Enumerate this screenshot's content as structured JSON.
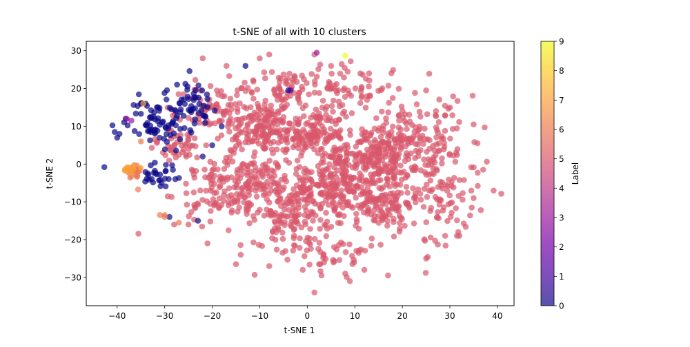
{
  "chart_data": {
    "type": "scatter",
    "title": "t-SNE of all with 10 clusters",
    "xlabel": "t-SNE 1",
    "ylabel": "t-SNE 2",
    "xlim": [
      -46.5,
      43.5
    ],
    "ylim": [
      -37.5,
      32.5
    ],
    "xticks": [
      -40,
      -30,
      -20,
      -10,
      0,
      10,
      20,
      30,
      40
    ],
    "yticks": [
      -30,
      -20,
      -10,
      0,
      10,
      20,
      30
    ],
    "grid": false,
    "legend": "none",
    "colorbar": {
      "label": "Label",
      "min": 0,
      "max": 9,
      "ticks": [
        0,
        1,
        2,
        3,
        4,
        5,
        6,
        7,
        8,
        9
      ],
      "colormap": "plasma",
      "stops": [
        "#0d0887",
        "#46039f",
        "#7201a8",
        "#9c179e",
        "#bd3786",
        "#d8576b",
        "#ed7953",
        "#fb9f3a",
        "#fdca26",
        "#f0f921"
      ]
    },
    "series": [
      {
        "label": 5,
        "color": "#d8576b",
        "clusters": [
          {
            "center": [
              -10,
              10
            ],
            "sd": [
              3.5,
              3.5
            ],
            "n": 130
          },
          {
            "center": [
              1,
              8
            ],
            "sd": [
              3.5,
              3.0
            ],
            "n": 120
          },
          {
            "center": [
              15,
              2
            ],
            "sd": [
              4.0,
              4.0
            ],
            "n": 200
          },
          {
            "center": [
              5,
              -7
            ],
            "sd": [
              4.0,
              3.5
            ],
            "n": 130
          },
          {
            "center": [
              -12,
              -6
            ],
            "sd": [
              4.0,
              4.0
            ],
            "n": 130
          },
          {
            "center": [
              -4,
              -14
            ],
            "sd": [
              3.5,
              3.5
            ],
            "n": 90
          },
          {
            "center": [
              15,
              -10
            ],
            "sd": [
              3.5,
              3.5
            ],
            "n": 100
          },
          {
            "center": [
              -5,
              20
            ],
            "sd": [
              5.0,
              2.5
            ],
            "n": 70
          },
          {
            "center": [
              -20,
              14
            ],
            "sd": [
              3.0,
              4.0
            ],
            "n": 60
          },
          {
            "center": [
              -27,
              5
            ],
            "sd": [
              3.5,
              2.0
            ],
            "n": 40
          },
          {
            "center": [
              -20,
              -8
            ],
            "sd": [
              3.5,
              4.0
            ],
            "n": 50
          },
          {
            "center": [
              25,
              8
            ],
            "sd": [
              4.0,
              5.0
            ],
            "n": 70
          },
          {
            "center": [
              28,
              -10
            ],
            "sd": [
              4.0,
              5.0
            ],
            "n": 60
          },
          {
            "center": [
              5,
              -23
            ],
            "sd": [
              5.0,
              3.0
            ],
            "n": 50
          },
          {
            "center": [
              8,
              20
            ],
            "sd": [
              5.0,
              3.0
            ],
            "n": 50
          },
          {
            "center": [
              0,
              0
            ],
            "sd": [
              12.0,
              10.0
            ],
            "n": 220
          },
          {
            "center": [
              20,
              0
            ],
            "sd": [
              9.0,
              10.0
            ],
            "n": 140
          }
        ],
        "points": [
          [
            -22,
            28
          ],
          [
            -17,
            26
          ],
          [
            -10,
            28
          ],
          [
            -8,
            29
          ],
          [
            1.5,
            29
          ],
          [
            5,
            26
          ],
          [
            13,
            24
          ],
          [
            25,
            19.5
          ],
          [
            30,
            15
          ],
          [
            35,
            10.5
          ],
          [
            37,
            -1.5
          ],
          [
            35,
            -9
          ],
          [
            32,
            -19
          ],
          [
            29,
            -19
          ],
          [
            25,
            -25
          ],
          [
            17,
            -29.5
          ],
          [
            12,
            -28
          ],
          [
            8,
            -29
          ],
          [
            1.5,
            -34
          ],
          [
            3,
            -29.5
          ],
          [
            -8,
            -27
          ],
          [
            -15,
            -26.5
          ],
          [
            -21,
            -21
          ],
          [
            -25,
            -16
          ],
          [
            -28,
            -16
          ],
          [
            -14,
            -24
          ]
        ]
      },
      {
        "label": 0,
        "color": "#0d0887",
        "clusters": [
          {
            "center": [
              -32,
              11
            ],
            "sd": [
              3.0,
              3.0
            ],
            "n": 65
          },
          {
            "center": [
              -25,
              16
            ],
            "sd": [
              2.5,
              3.0
            ],
            "n": 55
          },
          {
            "center": [
              -31,
              -3
            ],
            "sd": [
              2.5,
              2.5
            ],
            "n": 30
          }
        ],
        "points": [
          [
            -42.7,
            -0.8
          ],
          [
            -40.5,
            8.5
          ],
          [
            -40,
            7
          ],
          [
            -39.5,
            8
          ],
          [
            -29,
            -14
          ],
          [
            -23,
            -15
          ],
          [
            -13,
            26
          ],
          [
            -4,
            19.5
          ],
          [
            -35,
            16
          ],
          [
            -34,
            16
          ],
          [
            -22,
            2
          ],
          [
            -20,
            5
          ],
          [
            -18,
            10
          ]
        ]
      },
      {
        "label": 6,
        "color": "#ed7953",
        "clusters": [
          {
            "center": [
              -36.5,
              -2.5
            ],
            "sd": [
              0.7,
              1.6
            ],
            "n": 22
          }
        ],
        "points": [
          [
            -31,
            -13.5
          ],
          [
            -30,
            -13.5
          ],
          [
            -27,
            -15.5
          ],
          [
            -35,
            6
          ],
          [
            -30,
            -14
          ]
        ]
      },
      {
        "label": 7,
        "color": "#fb9f3a",
        "clusters": [
          {
            "center": [
              -37,
              -1.2
            ],
            "sd": [
              0.8,
              0.6
            ],
            "n": 12
          }
        ],
        "points": [
          [
            -34.5,
            16
          ]
        ]
      },
      {
        "label": 3,
        "color": "#9c179e",
        "clusters": [],
        "points": [
          [
            2,
            29.5
          ],
          [
            -38,
            12
          ],
          [
            -37,
            11.5
          ]
        ]
      },
      {
        "label": 9,
        "color": "#f0f921",
        "clusters": [],
        "points": [
          [
            8,
            28.7
          ]
        ]
      },
      {
        "label": 1,
        "color": "#46039f",
        "clusters": [],
        "points": [
          [
            -3.5,
            19.5
          ]
        ]
      }
    ]
  }
}
